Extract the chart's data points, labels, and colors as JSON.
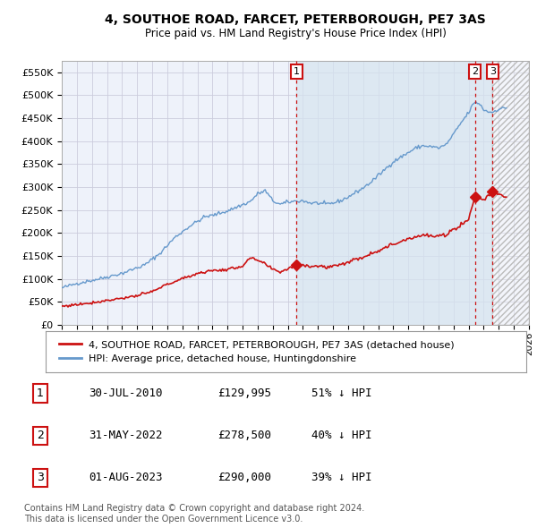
{
  "title_line1": "4, SOUTHOE ROAD, FARCET, PETERBOROUGH, PE7 3AS",
  "title_line2": "Price paid vs. HM Land Registry's House Price Index (HPI)",
  "ylim": [
    0,
    575000
  ],
  "yticks": [
    0,
    50000,
    100000,
    150000,
    200000,
    250000,
    300000,
    350000,
    400000,
    450000,
    500000,
    550000
  ],
  "ytick_labels": [
    "£0",
    "£50K",
    "£100K",
    "£150K",
    "£200K",
    "£250K",
    "£300K",
    "£350K",
    "£400K",
    "£450K",
    "£500K",
    "£550K"
  ],
  "hpi_color": "#6699cc",
  "price_color": "#cc1111",
  "annotation_box_color": "#cc1111",
  "grid_color": "#ccccdd",
  "background_color": "#dde8f5",
  "background_color_plain": "#eef2fa",
  "hatch_color": "#cccccc",
  "transactions": [
    {
      "label": "1",
      "date": "30-JUL-2010",
      "price": 129995,
      "pct": "51% ↓ HPI",
      "x_year": 2010.58
    },
    {
      "label": "2",
      "date": "31-MAY-2022",
      "price": 278500,
      "pct": "40% ↓ HPI",
      "x_year": 2022.42
    },
    {
      "label": "3",
      "date": "01-AUG-2023",
      "price": 290000,
      "pct": "39% ↓ HPI",
      "x_year": 2023.58
    }
  ],
  "legend_label_price": "4, SOUTHOE ROAD, FARCET, PETERBOROUGH, PE7 3AS (detached house)",
  "legend_label_hpi": "HPI: Average price, detached house, Huntingdonshire",
  "footer_line1": "Contains HM Land Registry data © Crown copyright and database right 2024.",
  "footer_line2": "This data is licensed under the Open Government Licence v3.0.",
  "xmin": 1995.0,
  "xmax": 2026.0
}
